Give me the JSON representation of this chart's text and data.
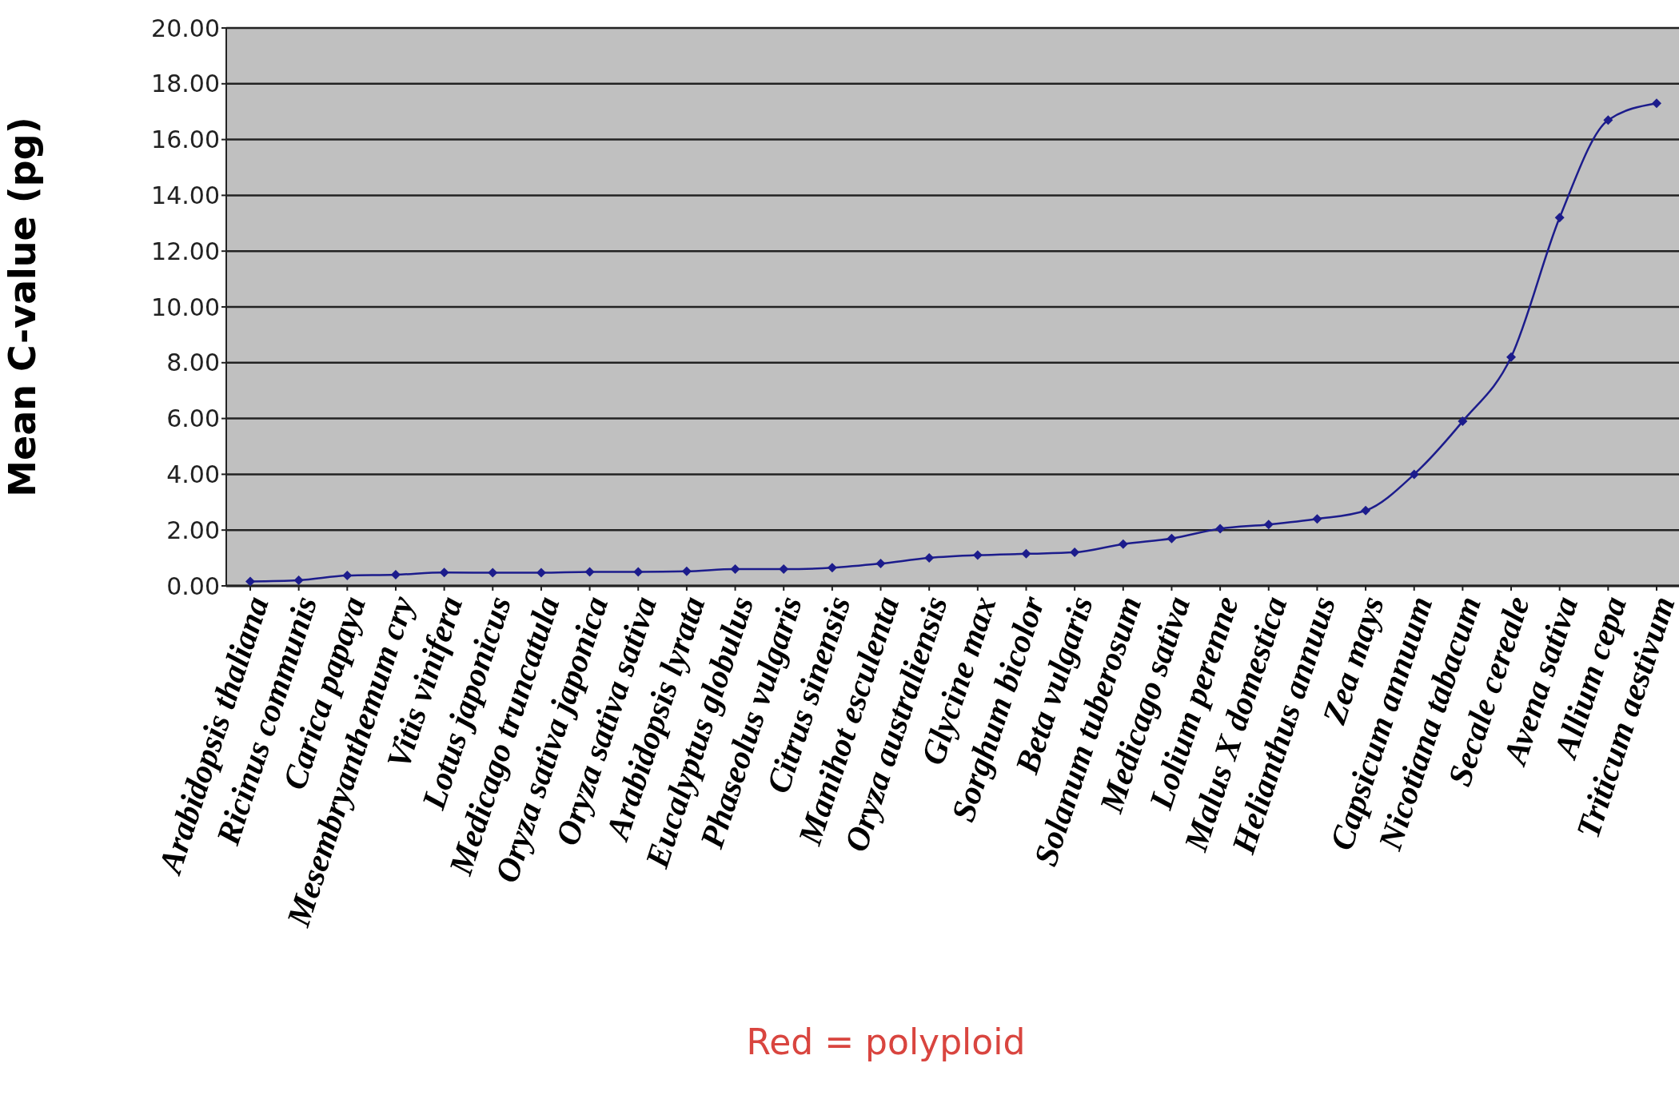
{
  "chart_data": {
    "type": "line",
    "ylabel": "Mean C-value (pg)",
    "categories": [
      "Arabidopsis thaliana",
      "Ricinus communis",
      "Carica papaya",
      "Mesembryanthemum cry",
      "Vitis vinifera",
      "Lotus japonicus",
      "Medicago truncatula",
      "Oryza sativa japonica",
      "Oryza sativa sativa",
      "Arabidopsis lyrata",
      "Eucalyptus globulus",
      "Phaseolus vulgaris",
      "Citrus sinensis",
      "Manihot esculenta",
      "Oryza australiensis",
      "Glycine max",
      "Sorghum bicolor",
      "Beta vulgaris",
      "Solanum tuberosum",
      "Medicago sativa",
      "Lolium perenne",
      "Malus X domestica",
      "Helianthus annuus",
      "Zea mays",
      "Capsicum annuum",
      "Nicotiana tabacum",
      "Secale cereale",
      "Avena sativa",
      "Allium cepa",
      "Triticum aestivum"
    ],
    "series": [
      {
        "color": "#1c1c8c",
        "values": [
          0.16,
          0.2,
          0.37,
          0.4,
          0.48,
          0.47,
          0.47,
          0.5,
          0.5,
          0.52,
          0.6,
          0.6,
          0.65,
          0.8,
          1.0,
          1.1,
          1.15,
          1.2,
          1.5,
          1.7,
          2.05,
          2.2,
          2.4,
          2.7,
          4.0,
          5.9,
          8.2,
          13.2,
          16.7,
          17.3
        ]
      }
    ],
    "ylim": [
      0,
      20
    ],
    "yticks": [
      {
        "value": 0,
        "label": "0.00"
      },
      {
        "value": 2,
        "label": "2.00"
      },
      {
        "value": 4,
        "label": "4.00"
      },
      {
        "value": 6,
        "label": "6.00"
      },
      {
        "value": 8,
        "label": "8.00"
      },
      {
        "value": 10,
        "label": "10.00"
      },
      {
        "value": 12,
        "label": "12.00"
      },
      {
        "value": 14,
        "label": "14.00"
      },
      {
        "value": 16,
        "label": "16.00"
      },
      {
        "value": 18,
        "label": "18.00"
      },
      {
        "value": 20,
        "label": "20.00"
      }
    ],
    "grid": "y",
    "legend": false,
    "marker": "diamond",
    "line_style": "solid",
    "annotations": [
      "Red = polyploid"
    ]
  }
}
